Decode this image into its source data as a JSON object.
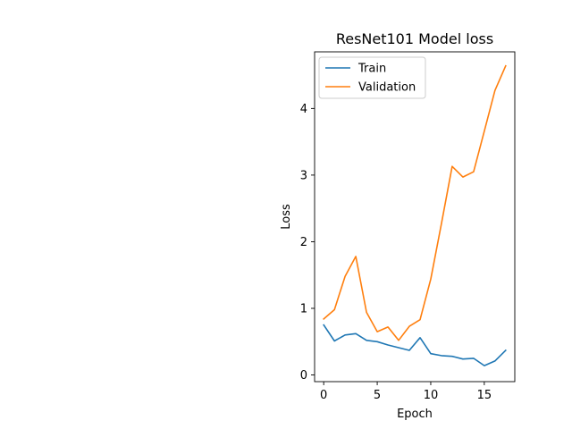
{
  "chart_data": {
    "type": "line",
    "title": "ResNet101 Model loss",
    "xlabel": "Epoch",
    "ylabel": "Loss",
    "xlim": [
      -0.85,
      17.85
    ],
    "ylim": [
      -0.1,
      4.85
    ],
    "xticks": [
      0,
      5,
      10,
      15
    ],
    "yticks": [
      0,
      1,
      2,
      3,
      4
    ],
    "legend_position": "upper-left",
    "grid": false,
    "x": [
      0,
      1,
      2,
      3,
      4,
      5,
      6,
      7,
      8,
      9,
      10,
      11,
      12,
      13,
      14,
      15,
      16,
      17
    ],
    "series": [
      {
        "name": "Train",
        "color": "#1f77b4",
        "values": [
          0.75,
          0.51,
          0.6,
          0.62,
          0.52,
          0.5,
          0.45,
          0.41,
          0.37,
          0.56,
          0.32,
          0.29,
          0.28,
          0.24,
          0.25,
          0.14,
          0.21,
          0.37
        ]
      },
      {
        "name": "Validation",
        "color": "#ff7f0e",
        "values": [
          0.84,
          0.98,
          1.48,
          1.78,
          0.94,
          0.65,
          0.72,
          0.52,
          0.73,
          0.83,
          1.44,
          2.27,
          3.13,
          2.97,
          3.05,
          3.66,
          4.27,
          4.64
        ]
      }
    ]
  }
}
